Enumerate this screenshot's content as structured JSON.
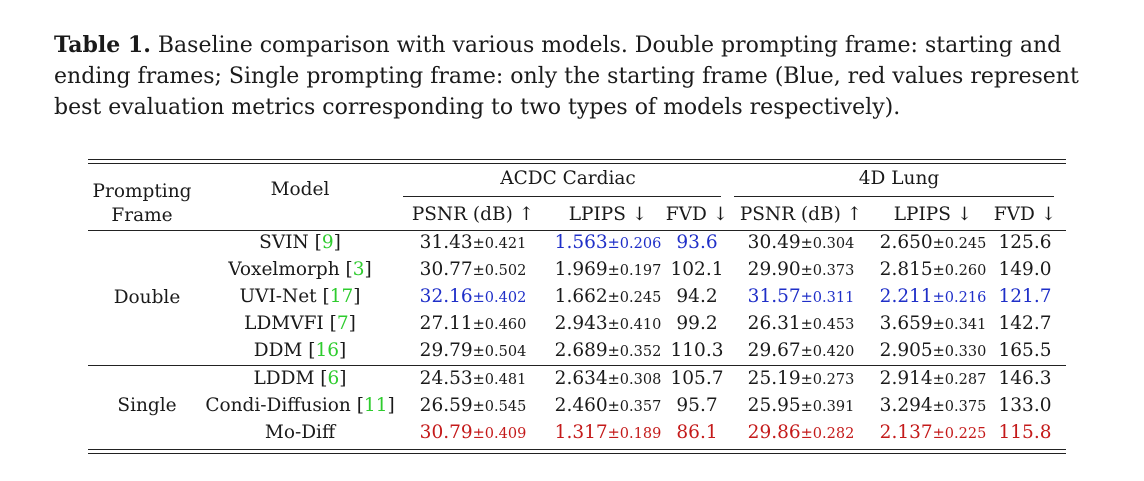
{
  "caption": {
    "label": "Table 1.",
    "text": "Baseline comparison with various models. Double prompting frame: starting and ending frames; Single prompting frame: only the starting frame (Blue, red values represent best evaluation metrics corresponding to two types of models respectively)."
  },
  "table": {
    "header": {
      "prompting_l1": "Prompting",
      "prompting_l2": "Frame",
      "model": "Model",
      "group1": "ACDC Cardiac",
      "group2": "4D Lung",
      "metrics": [
        "PSNR (dB) ↑",
        "LPIPS ↓",
        "FVD ↓",
        "PSNR (dB) ↑",
        "LPIPS ↓",
        "FVD ↓"
      ]
    },
    "groups": [
      "Double",
      "Single"
    ],
    "rows": [
      {
        "group": "Double",
        "model": "SVIN",
        "ref": "9",
        "acdc_psnr": "31.43",
        "acdc_psnr_sd": "±0.421",
        "acdc_lpips": "1.563",
        "acdc_lpips_sd": "±0.206",
        "acdc_fvd": "93.6",
        "lung_psnr": "30.49",
        "lung_psnr_sd": "±0.304",
        "lung_lpips": "2.650",
        "lung_lpips_sd": "±0.245",
        "lung_fvd": "125.6",
        "colors": [
          "",
          "blue",
          "blue",
          "",
          "",
          ""
        ]
      },
      {
        "group": "Double",
        "model": "Voxelmorph",
        "ref": "3",
        "acdc_psnr": "30.77",
        "acdc_psnr_sd": "±0.502",
        "acdc_lpips": "1.969",
        "acdc_lpips_sd": "±0.197",
        "acdc_fvd": "102.1",
        "lung_psnr": "29.90",
        "lung_psnr_sd": "±0.373",
        "lung_lpips": "2.815",
        "lung_lpips_sd": "±0.260",
        "lung_fvd": "149.0",
        "colors": [
          "",
          "",
          "",
          "",
          "",
          ""
        ]
      },
      {
        "group": "Double",
        "model": "UVI-Net",
        "ref": "17",
        "acdc_psnr": "32.16",
        "acdc_psnr_sd": "±0.402",
        "acdc_lpips": "1.662",
        "acdc_lpips_sd": "±0.245",
        "acdc_fvd": "94.2",
        "lung_psnr": "31.57",
        "lung_psnr_sd": "±0.311",
        "lung_lpips": "2.211",
        "lung_lpips_sd": "±0.216",
        "lung_fvd": "121.7",
        "colors": [
          "blue",
          "",
          "",
          "blue",
          "blue",
          "blue"
        ]
      },
      {
        "group": "Double",
        "model": "LDMVFI",
        "ref": "7",
        "acdc_psnr": "27.11",
        "acdc_psnr_sd": "±0.460",
        "acdc_lpips": "2.943",
        "acdc_lpips_sd": "±0.410",
        "acdc_fvd": "99.2",
        "lung_psnr": "26.31",
        "lung_psnr_sd": "±0.453",
        "lung_lpips": "3.659",
        "lung_lpips_sd": "±0.341",
        "lung_fvd": "142.7",
        "colors": [
          "",
          "",
          "",
          "",
          "",
          ""
        ]
      },
      {
        "group": "Double",
        "model": "DDM",
        "ref": "16",
        "acdc_psnr": "29.79",
        "acdc_psnr_sd": "±0.504",
        "acdc_lpips": "2.689",
        "acdc_lpips_sd": "±0.352",
        "acdc_fvd": "110.3",
        "lung_psnr": "29.67",
        "lung_psnr_sd": "±0.420",
        "lung_lpips": "2.905",
        "lung_lpips_sd": "±0.330",
        "lung_fvd": "165.5",
        "colors": [
          "",
          "",
          "",
          "",
          "",
          ""
        ]
      },
      {
        "group": "Single",
        "model": "LDDM",
        "ref": "6",
        "acdc_psnr": "24.53",
        "acdc_psnr_sd": "±0.481",
        "acdc_lpips": "2.634",
        "acdc_lpips_sd": "±0.308",
        "acdc_fvd": "105.7",
        "lung_psnr": "25.19",
        "lung_psnr_sd": "±0.273",
        "lung_lpips": "2.914",
        "lung_lpips_sd": "±0.287",
        "lung_fvd": "146.3",
        "colors": [
          "",
          "",
          "",
          "",
          "",
          ""
        ]
      },
      {
        "group": "Single",
        "model": "Condi-Diffusion",
        "ref": "11",
        "acdc_psnr": "26.59",
        "acdc_psnr_sd": "±0.545",
        "acdc_lpips": "2.460",
        "acdc_lpips_sd": "±0.357",
        "acdc_fvd": "95.7",
        "lung_psnr": "25.95",
        "lung_psnr_sd": "±0.391",
        "lung_lpips": "3.294",
        "lung_lpips_sd": "±0.375",
        "lung_fvd": "133.0",
        "colors": [
          "",
          "",
          "",
          "",
          "",
          ""
        ]
      },
      {
        "group": "Single",
        "model": "Mo-Diff",
        "ref": "",
        "acdc_psnr": "30.79",
        "acdc_psnr_sd": "±0.409",
        "acdc_lpips": "1.317",
        "acdc_lpips_sd": "±0.189",
        "acdc_fvd": "86.1",
        "lung_psnr": "29.86",
        "lung_psnr_sd": "±0.282",
        "lung_lpips": "2.137",
        "lung_lpips_sd": "±0.225",
        "lung_fvd": "115.8",
        "colors": [
          "red",
          "red",
          "red",
          "red",
          "red",
          "red"
        ]
      }
    ]
  }
}
